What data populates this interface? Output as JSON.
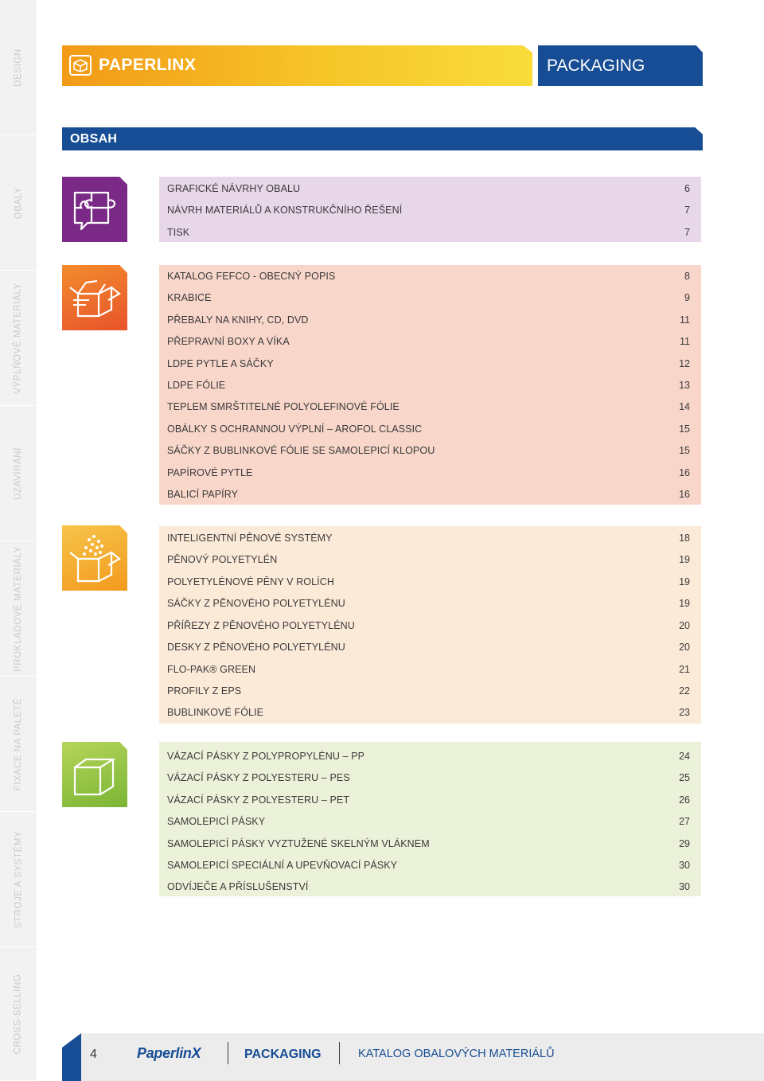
{
  "side_tabs": [
    {
      "label": "DESIGN"
    },
    {
      "label": "OBALY"
    },
    {
      "label": "VÝPLŇOVÉ MATERIÁLY"
    },
    {
      "label": "UZAVÍRÁNÍ"
    },
    {
      "label": "PROKLADOVÉ MATERIÁLY"
    },
    {
      "label": "FIXACE NA PALETĚ"
    },
    {
      "label": "STROJE A SYSTÉMY"
    },
    {
      "label": "CROSS-SELLING"
    }
  ],
  "header": {
    "brand_title": "PAPERLINX",
    "section_title": "PACKAGING",
    "contents_title": "OBSAH",
    "brand_icon": "box-icon"
  },
  "sections": [
    {
      "icon": "puzzle-speech-icon",
      "color": "#7a2a86",
      "bg": "#e8d6e9",
      "items": [
        {
          "label": "GRAFICKÉ NÁVRHY OBALU",
          "page": "6"
        },
        {
          "label": "NÁVRH MATERIÁLŮ A KONSTRUKČNÍHO ŘEŠENÍ",
          "page": "7"
        },
        {
          "label": "TISK",
          "page": "7"
        }
      ]
    },
    {
      "icon": "open-box-icon",
      "color": "#e8532b",
      "bg": "#f8d6ca",
      "items": [
        {
          "label": "KATALOG FEFCO - OBECNÝ POPIS",
          "page": "8"
        },
        {
          "label": "KRABICE",
          "page": "9"
        },
        {
          "label": "PŘEBALY NA KNIHY, CD, DVD",
          "page": "11"
        },
        {
          "label": "PŘEPRAVNÍ BOXY A VÍKA",
          "page": "11"
        },
        {
          "label": "LDPE PYTLE A SÁČKY",
          "page": "12"
        },
        {
          "label": "LDPE FÓLIE",
          "page": "13"
        },
        {
          "label": "TEPLEM SMRŠTITELNÉ POLYOLEFINOVÉ FÓLIE",
          "page": "14"
        },
        {
          "label": "OBÁLKY S OCHRANNOU VÝPLNÍ – AROFOL CLASSIC",
          "page": "15"
        },
        {
          "label": "SÁČKY Z BUBLINKOVÉ FÓLIE SE SAMOLEPICÍ KLOPOU",
          "page": "15"
        },
        {
          "label": "PAPÍROVÉ PYTLE",
          "page": "16"
        },
        {
          "label": "BALICÍ PAPÍRY",
          "page": "16"
        }
      ]
    },
    {
      "icon": "box-with-fill-icon",
      "color": "#f3a221",
      "bg": "#fcead8",
      "items": [
        {
          "label": "INTELIGENTNÍ PĚNOVÉ SYSTÉMY",
          "page": "18"
        },
        {
          "label": "PĚNOVÝ POLYETYLÉN",
          "page": "19"
        },
        {
          "label": "POLYETYLÉNOVÉ PĚNY V ROLÍCH",
          "page": "19"
        },
        {
          "label": "SÁČKY Z PĚNOVÉHO POLYETYLÉNU",
          "page": "19"
        },
        {
          "label": "PŘÍŘEZY Z PĚNOVÉHO POLYETYLÉNU",
          "page": "20"
        },
        {
          "label": "DESKY Z PĚNOVÉHO POLYETYLÉNU",
          "page": "20"
        },
        {
          "label": "FLO-PAK® GREEN",
          "page": "21"
        },
        {
          "label": "PROFILY Z EPS",
          "page": "22"
        },
        {
          "label": "BUBLINKOVÉ FÓLIE",
          "page": "23"
        }
      ]
    },
    {
      "icon": "closed-box-icon",
      "color": "#8dc13f",
      "bg": "#ecf2d9",
      "items": [
        {
          "label": "VÁZACÍ PÁSKY Z POLYPROPYLÉNU – PP",
          "page": "24"
        },
        {
          "label": "VÁZACÍ PÁSKY Z POLYESTERU – PES",
          "page": "25"
        },
        {
          "label": "VÁZACÍ PÁSKY Z POLYESTERU – PET",
          "page": "26"
        },
        {
          "label": "SAMOLEPICÍ PÁSKY",
          "page": "27"
        },
        {
          "label": "SAMOLEPICÍ  PÁSKY VYZTUŽENÉ SKELNÝM VLÁKNEM",
          "page": "29"
        },
        {
          "label": "SAMOLEPICÍ  SPECIÁLNÍ A UPEVŇOVACÍ PÁSKY",
          "page": "30"
        },
        {
          "label": "ODVÍJEČE A PŘÍSLUŠENSTVÍ",
          "page": "30"
        }
      ]
    }
  ],
  "footer": {
    "page_number": "4",
    "logo_text": "PaperlinX",
    "packaging": "PACKAGING",
    "catalog": "KATALOG OBALOVÝCH MATERIÁLŮ"
  }
}
